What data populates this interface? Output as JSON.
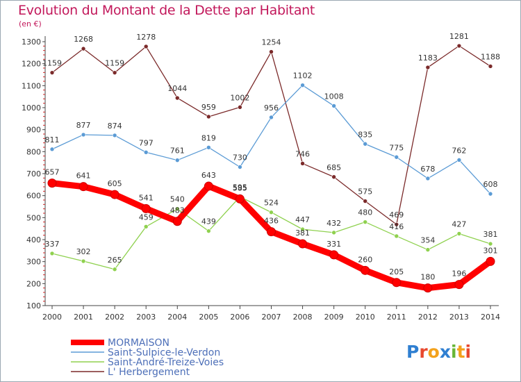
{
  "title": "Evolution du Montant de la Dette par Habitant",
  "unit": "(en €)",
  "logo_text": "Proxiti",
  "chart_data": {
    "type": "line",
    "title": "Evolution du Montant de la Dette par Habitant",
    "ylabel": "(en €)",
    "xlabel": "",
    "ylim": [
      100,
      1300
    ],
    "y_ticks": [
      100,
      200,
      300,
      400,
      500,
      600,
      700,
      800,
      900,
      1000,
      1100,
      1200,
      1300
    ],
    "grid": false,
    "legend_position": "bottom-left",
    "categories": [
      "2000",
      "2001",
      "2002",
      "2003",
      "2004",
      "2005",
      "2006",
      "2007",
      "2008",
      "2009",
      "2010",
      "2011",
      "2012",
      "2013",
      "2014"
    ],
    "series": [
      {
        "name": "MORMAISON",
        "color": "#ff0000",
        "values": [
          657,
          641,
          605,
          541,
          483,
          643,
          585,
          436,
          381,
          331,
          260,
          205,
          180,
          196,
          301
        ]
      },
      {
        "name": "Saint-Sulpice-le-Verdon",
        "color": "#5b9bd5",
        "values": [
          811,
          877,
          874,
          797,
          761,
          819,
          730,
          956,
          1102,
          1008,
          835,
          775,
          678,
          762,
          608
        ]
      },
      {
        "name": "Saint-André-Treize-Voies",
        "color": "#8fd14f",
        "values": [
          337,
          302,
          265,
          459,
          540,
          439,
          595,
          524,
          447,
          432,
          480,
          416,
          354,
          427,
          381
        ]
      },
      {
        "name": "L' Herbergement",
        "color": "#7b2a2a",
        "values": [
          1159,
          1268,
          1159,
          1278,
          1044,
          959,
          1002,
          1254,
          746,
          685,
          575,
          469,
          1183,
          1281,
          1188
        ]
      }
    ]
  }
}
